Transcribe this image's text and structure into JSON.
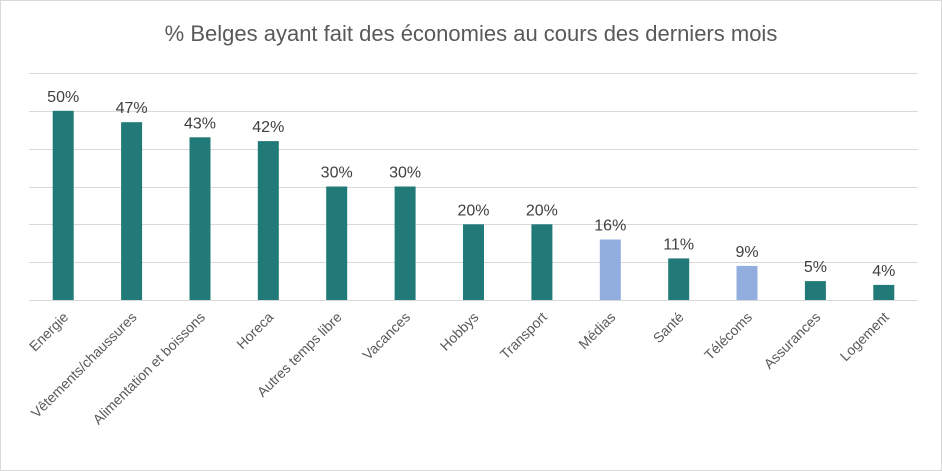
{
  "chart_data": {
    "type": "bar",
    "title": "% Belges ayant fait des économies au cours des derniers mois",
    "categories": [
      "Energie",
      "Vêtements/chaussures",
      "Alimentation et boissons",
      "Horeca",
      "Autres temps libre",
      "Vacances",
      "Hobbys",
      "Transport",
      "Médias",
      "Santé",
      "Télécoms",
      "Assurances",
      "Logement"
    ],
    "values": [
      50,
      47,
      43,
      42,
      30,
      30,
      20,
      20,
      16,
      11,
      9,
      5,
      4
    ],
    "labels": [
      "50%",
      "47%",
      "43%",
      "42%",
      "30%",
      "30%",
      "20%",
      "20%",
      "16%",
      "11%",
      "9%",
      "5%",
      "4%"
    ],
    "highlighted": [
      false,
      false,
      false,
      false,
      false,
      false,
      false,
      false,
      true,
      false,
      true,
      false,
      false
    ],
    "ylim": [
      0,
      60
    ],
    "ytick_step": 10,
    "grid": true,
    "xlabel": "",
    "ylabel": "",
    "colors": {
      "primary": "#217A78",
      "highlight": "#91AEDF",
      "grid": "#D9D9D9"
    }
  }
}
